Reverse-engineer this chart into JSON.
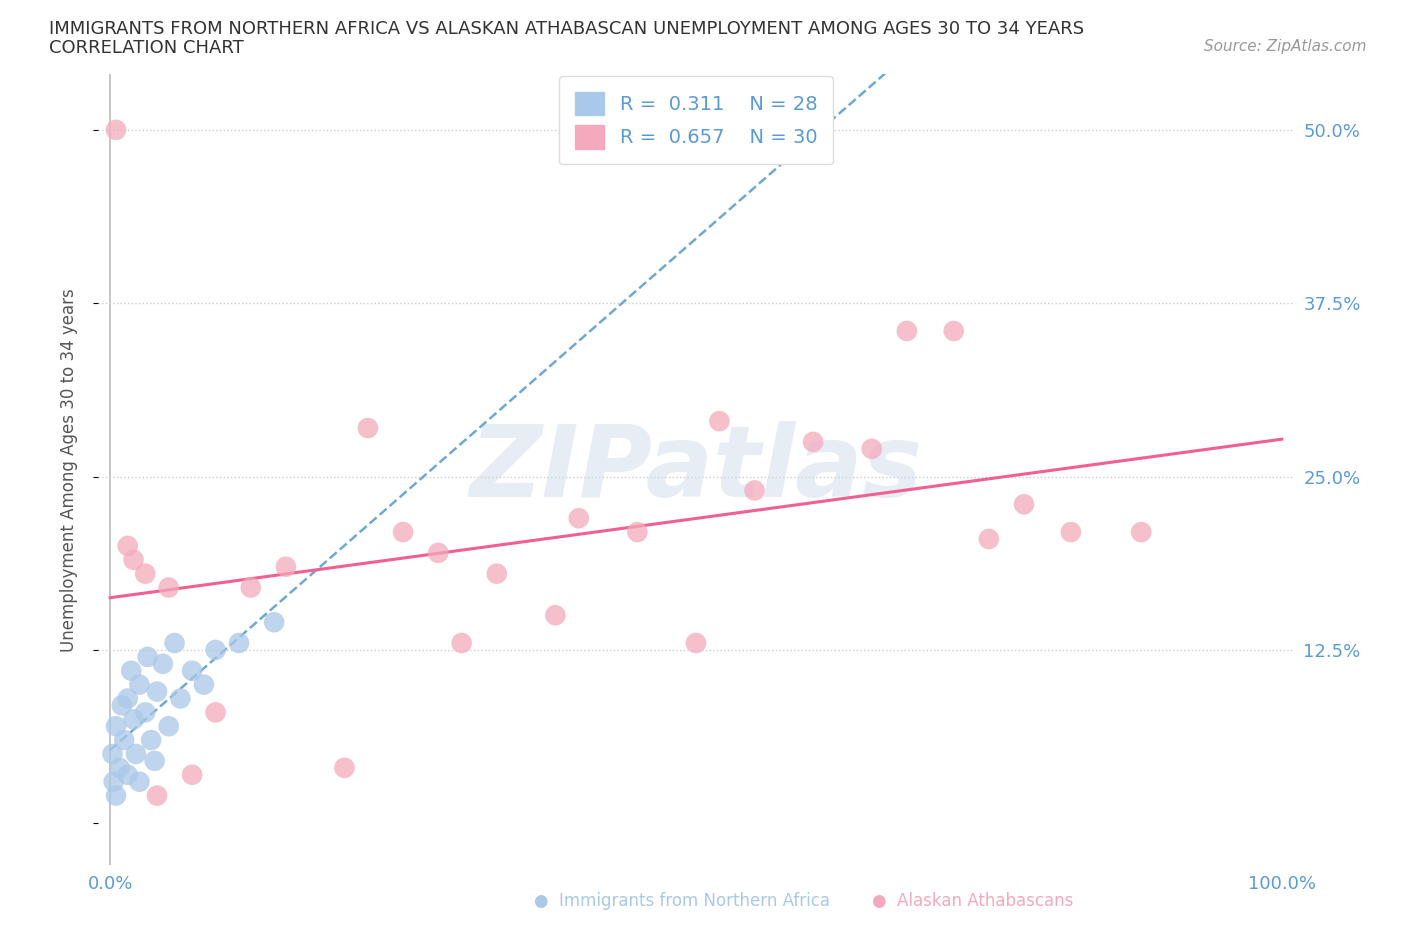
{
  "title_line1": "IMMIGRANTS FROM NORTHERN AFRICA VS ALASKAN ATHABASCAN UNEMPLOYMENT AMONG AGES 30 TO 34 YEARS",
  "title_line2": "CORRELATION CHART",
  "source_text": "Source: ZipAtlas.com",
  "ylabel": "Unemployment Among Ages 30 to 34 years",
  "legend_r1": "R =  0.311",
  "legend_n1": "N = 28",
  "legend_r2": "R =  0.657",
  "legend_n2": "N = 30",
  "blue_color": "#aac8e8",
  "pink_color": "#f4aabc",
  "blue_line_color": "#5599cc",
  "pink_line_color": "#f06090",
  "watermark_text": "ZIPatlas",
  "background_color": "#ffffff",
  "grid_color": "#cccccc",
  "blue_scatter_x": [
    0.2,
    0.3,
    0.5,
    0.5,
    0.8,
    1.0,
    1.2,
    1.5,
    1.5,
    1.8,
    2.0,
    2.2,
    2.5,
    2.5,
    3.0,
    3.2,
    3.5,
    3.8,
    4.0,
    4.5,
    5.0,
    5.5,
    6.0,
    7.0,
    8.0,
    9.0,
    11.0,
    14.0
  ],
  "blue_scatter_y": [
    5.0,
    3.0,
    2.0,
    7.0,
    4.0,
    8.5,
    6.0,
    9.0,
    3.5,
    11.0,
    7.5,
    5.0,
    10.0,
    3.0,
    8.0,
    12.0,
    6.0,
    4.5,
    9.5,
    11.5,
    7.0,
    13.0,
    9.0,
    11.0,
    10.0,
    12.5,
    13.0,
    14.5
  ],
  "pink_scatter_x": [
    0.5,
    1.5,
    2.0,
    3.0,
    4.0,
    5.0,
    7.0,
    9.0,
    12.0,
    15.0,
    20.0,
    22.0,
    25.0,
    28.0,
    30.0,
    33.0,
    38.0,
    40.0,
    45.0,
    50.0,
    52.0,
    55.0,
    60.0,
    65.0,
    68.0,
    72.0,
    75.0,
    78.0,
    82.0,
    88.0
  ],
  "pink_scatter_y": [
    50.0,
    20.0,
    19.0,
    18.0,
    2.0,
    17.0,
    3.5,
    8.0,
    17.0,
    18.5,
    4.0,
    28.5,
    21.0,
    19.5,
    13.0,
    18.0,
    15.0,
    22.0,
    21.0,
    13.0,
    29.0,
    24.0,
    27.5,
    27.0,
    35.5,
    35.5,
    20.5,
    23.0,
    21.0,
    21.0
  ],
  "xlim": [
    0,
    100
  ],
  "ylim": [
    0,
    55
  ],
  "ytick_vals": [
    0,
    12.5,
    25.0,
    37.5,
    50.0
  ],
  "ytick_labels": [
    "",
    "12.5%",
    "25.0%",
    "37.5%",
    "50.0%"
  ],
  "xtick_vals": [
    0,
    25,
    50,
    75,
    100
  ],
  "xtick_labels": [
    "0.0%",
    "",
    "",
    "",
    "100.0%"
  ]
}
